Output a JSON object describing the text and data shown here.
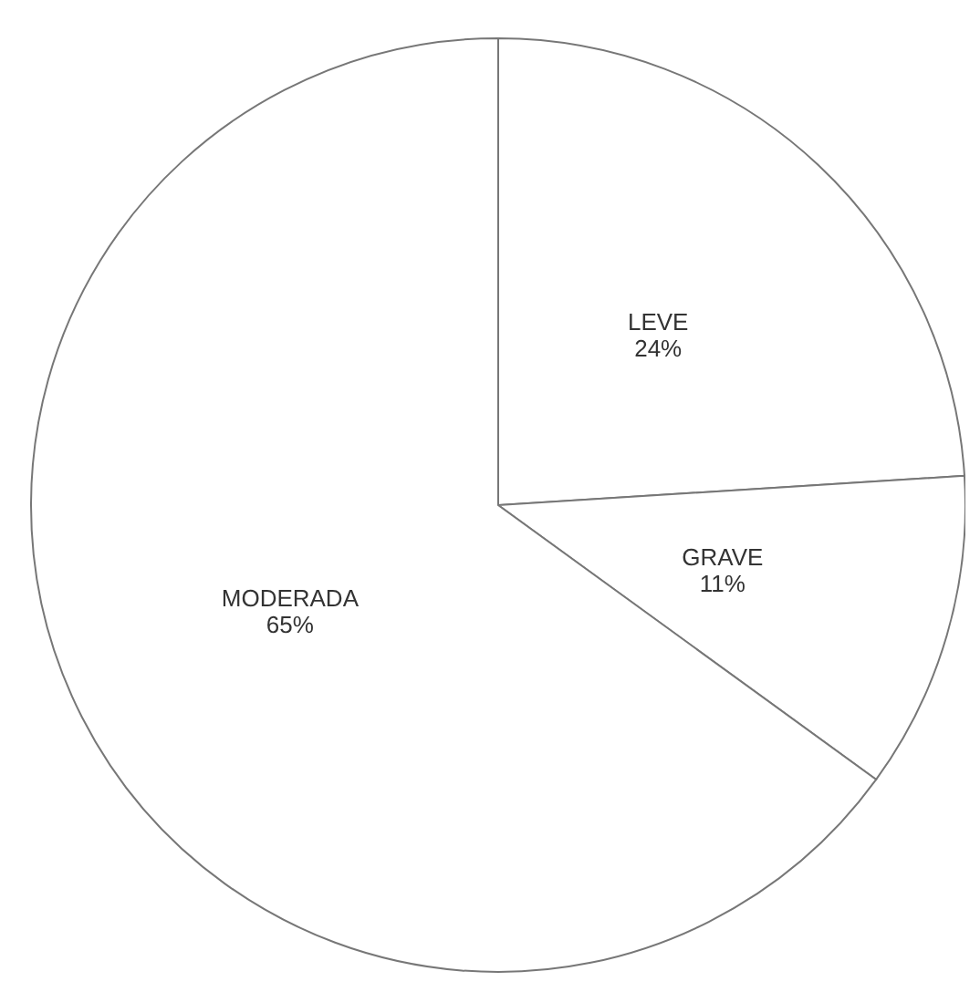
{
  "chart_data": {
    "type": "pie",
    "categories": [
      "LEVE",
      "GRAVE",
      "MODERADA"
    ],
    "values": [
      24,
      11,
      65
    ],
    "value_labels": [
      "24%",
      "11%",
      "65%"
    ],
    "colors": [
      "#ffffff",
      "#ffffff",
      "#ffffff"
    ]
  }
}
